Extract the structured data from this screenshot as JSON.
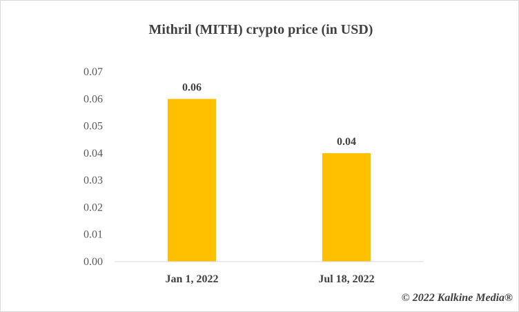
{
  "chart_data": {
    "type": "bar",
    "title": "Mithril (MITH) crypto price (in USD)",
    "categories": [
      "Jan 1, 2022",
      "Jul 18, 2022"
    ],
    "values": [
      0.06,
      0.04
    ],
    "data_labels": [
      "0.06",
      "0.04"
    ],
    "yticks": [
      "0.00",
      "0.01",
      "0.02",
      "0.03",
      "0.04",
      "0.05",
      "0.06",
      "0.07"
    ],
    "ylim": [
      0,
      0.07
    ],
    "xlabel": "",
    "ylabel": "",
    "grid": false,
    "legend": "none",
    "bar_color": "#FFC000"
  },
  "footer": {
    "copyright": "© 2022 Kalkine Media®"
  }
}
